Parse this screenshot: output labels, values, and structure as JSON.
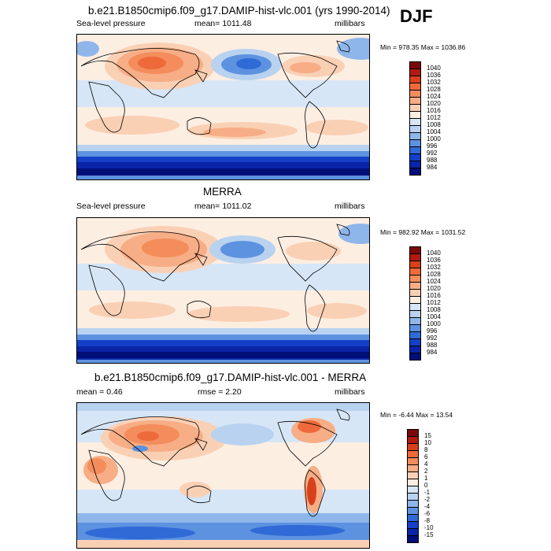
{
  "season": "DJF",
  "panels": [
    {
      "title": "b.e21.B1850cmip6.f09_g17.DAMIP-hist-vlc.001 (yrs 1990-2014)",
      "left_label": "Sea-level pressure",
      "center_label": "mean= 1011.48",
      "right_label": "millibars",
      "minmax": "Min = 978.35 Max = 1036.86",
      "colorbar": {
        "labels": [
          "1040",
          "1036",
          "1032",
          "1028",
          "1024",
          "1020",
          "1016",
          "1012",
          "1008",
          "1004",
          "1000",
          "996",
          "992",
          "988",
          "984"
        ],
        "colors": [
          "#7a0a0a",
          "#b01a10",
          "#d8401c",
          "#ee6a3a",
          "#f48c5c",
          "#f7ad85",
          "#fad0b5",
          "#fdeee2",
          "#d6e6f7",
          "#b8d2f0",
          "#8fb6ea",
          "#5d92e0",
          "#2f6ad6",
          "#1440c8",
          "#0a24a8",
          "#000e78"
        ]
      }
    },
    {
      "title": "MERRA",
      "left_label": "Sea-level pressure",
      "center_label": "mean= 1011.02",
      "right_label": "millibars",
      "minmax": "Min = 982.92 Max = 1031.52",
      "colorbar": {
        "labels": [
          "1040",
          "1036",
          "1032",
          "1028",
          "1024",
          "1020",
          "1016",
          "1012",
          "1008",
          "1004",
          "1000",
          "996",
          "992",
          "988",
          "984"
        ],
        "colors": [
          "#7a0a0a",
          "#b01a10",
          "#d8401c",
          "#ee6a3a",
          "#f48c5c",
          "#f7ad85",
          "#fad0b5",
          "#fdeee2",
          "#d6e6f7",
          "#b8d2f0",
          "#8fb6ea",
          "#5d92e0",
          "#2f6ad6",
          "#1440c8",
          "#0a24a8",
          "#000e78"
        ]
      }
    },
    {
      "title": "b.e21.B1850cmip6.f09_g17.DAMIP-hist-vlc.001 - MERRA",
      "left_label": "mean =   0.46",
      "center_label": "rmse =   2.20",
      "right_label": "millibars",
      "minmax": "Min =  -6.44 Max =  13.54",
      "colorbar": {
        "labels": [
          "15",
          "10",
          "8",
          "6",
          "4",
          "2",
          "1",
          "0",
          "-1",
          "-2",
          "-4",
          "-6",
          "-8",
          "-10",
          "-15"
        ],
        "colors": [
          "#7a0a0a",
          "#b01a10",
          "#d8401c",
          "#ee6a3a",
          "#f48c5c",
          "#f7ad85",
          "#fad0b5",
          "#fdeee2",
          "#d6e6f7",
          "#b8d2f0",
          "#8fb6ea",
          "#5d92e0",
          "#2f6ad6",
          "#1440c8",
          "#0a24a8",
          "#000e78"
        ]
      }
    }
  ]
}
